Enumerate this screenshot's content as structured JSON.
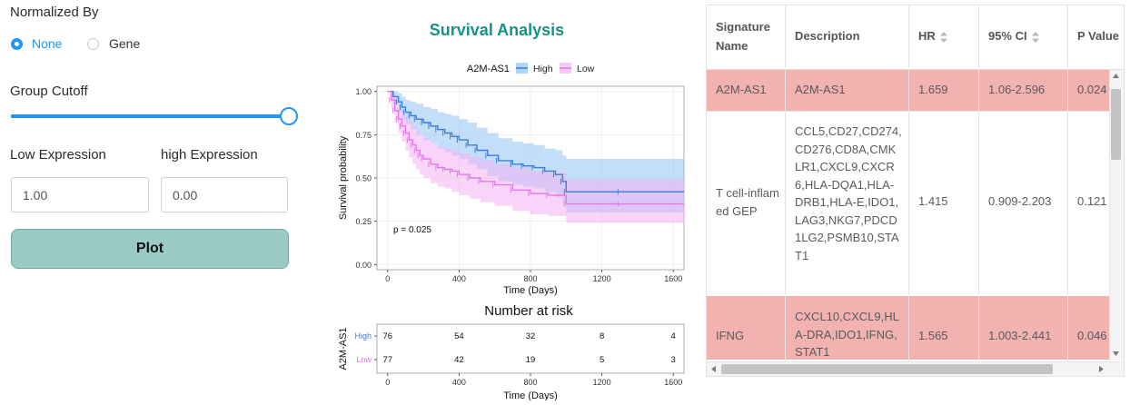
{
  "controls": {
    "normalized_by_label": "Normalized By",
    "radio_none": "None",
    "radio_gene": "Gene",
    "group_cutoff_label": "Group Cutoff",
    "slider_value": 1.0,
    "low_expression_label": "Low Expression",
    "high_expression_label": "high Expression",
    "low_value": "1.00",
    "high_value": "0.00",
    "plot_button": "Plot"
  },
  "chart_data": [
    {
      "type": "line",
      "title": "Survival Analysis",
      "legend_title": "A2M-AS1",
      "legend_position": "top",
      "xlabel": "Time (Days)",
      "ylabel": "Survival probability",
      "xlim": [
        -60,
        1660
      ],
      "ylim": [
        -0.03,
        1.03
      ],
      "xticks": [
        "0",
        "400",
        "800",
        "1200",
        "1600"
      ],
      "yticks": [
        "0.00",
        "0.25",
        "0.50",
        "0.75",
        "1.00"
      ],
      "annotation": "p = 0.025",
      "grid": true,
      "series": [
        {
          "name": "High",
          "color": "#3b7dd8",
          "band_color": "#8fc2f2",
          "x": [
            0,
            30,
            60,
            80,
            100,
            130,
            160,
            200,
            240,
            280,
            320,
            360,
            400,
            450,
            500,
            560,
            620,
            700,
            760,
            820,
            880,
            940,
            980,
            1000,
            1300,
            1660
          ],
          "y": [
            1.0,
            0.97,
            0.94,
            0.91,
            0.88,
            0.86,
            0.84,
            0.82,
            0.8,
            0.78,
            0.76,
            0.74,
            0.72,
            0.69,
            0.66,
            0.63,
            0.6,
            0.58,
            0.57,
            0.56,
            0.54,
            0.52,
            0.48,
            0.42,
            0.42,
            0.42
          ],
          "lower": [
            1.0,
            0.93,
            0.88,
            0.84,
            0.81,
            0.78,
            0.75,
            0.72,
            0.7,
            0.67,
            0.65,
            0.63,
            0.61,
            0.58,
            0.55,
            0.51,
            0.48,
            0.46,
            0.45,
            0.44,
            0.42,
            0.39,
            0.35,
            0.3,
            0.3,
            0.3
          ],
          "upper": [
            1.0,
            1.0,
            0.99,
            0.97,
            0.95,
            0.94,
            0.93,
            0.91,
            0.9,
            0.88,
            0.87,
            0.86,
            0.84,
            0.82,
            0.79,
            0.76,
            0.73,
            0.71,
            0.7,
            0.69,
            0.67,
            0.66,
            0.63,
            0.61,
            0.61,
            0.61
          ]
        },
        {
          "name": "Low",
          "color": "#e377e8",
          "band_color": "#f2b3f3",
          "x": [
            0,
            20,
            40,
            60,
            80,
            100,
            120,
            140,
            160,
            180,
            200,
            240,
            280,
            320,
            360,
            400,
            460,
            520,
            600,
            700,
            800,
            900,
            1000,
            1300,
            1660
          ],
          "y": [
            1.0,
            0.95,
            0.89,
            0.84,
            0.8,
            0.76,
            0.72,
            0.69,
            0.66,
            0.63,
            0.61,
            0.58,
            0.56,
            0.55,
            0.54,
            0.52,
            0.5,
            0.48,
            0.46,
            0.43,
            0.41,
            0.4,
            0.35,
            0.35,
            0.35
          ],
          "lower": [
            1.0,
            0.9,
            0.82,
            0.76,
            0.71,
            0.66,
            0.62,
            0.58,
            0.55,
            0.52,
            0.5,
            0.47,
            0.45,
            0.44,
            0.42,
            0.4,
            0.38,
            0.36,
            0.34,
            0.31,
            0.29,
            0.28,
            0.24,
            0.24,
            0.24
          ],
          "upper": [
            1.0,
            1.0,
            0.96,
            0.92,
            0.88,
            0.86,
            0.83,
            0.8,
            0.77,
            0.75,
            0.73,
            0.7,
            0.68,
            0.67,
            0.66,
            0.64,
            0.62,
            0.6,
            0.58,
            0.56,
            0.54,
            0.53,
            0.49,
            0.49,
            0.49
          ]
        }
      ]
    },
    {
      "type": "table",
      "title": "Number at risk",
      "ylabel": "A2M-AS1",
      "xlabel": "Time (Days)",
      "x": [
        0,
        400,
        800,
        1200,
        1600
      ],
      "xticks": [
        "0",
        "400",
        "800",
        "1200",
        "1600"
      ],
      "rows": [
        {
          "name": "High",
          "color": "#3b7dd8",
          "values": [
            "76",
            "54",
            "32",
            "8",
            "4"
          ]
        },
        {
          "name": "Low",
          "color": "#e377e8",
          "values": [
            "77",
            "42",
            "19",
            "5",
            "3"
          ]
        }
      ]
    }
  ],
  "table": {
    "columns": [
      "Signature Name",
      "Description",
      "HR",
      "95% CI",
      "P Value"
    ],
    "rows": [
      {
        "name": "A2M-AS1",
        "description": "A2M-AS1",
        "hr": "1.659",
        "ci": "1.06-2.596",
        "p": "0.024",
        "highlight": true
      },
      {
        "name": "T cell-inflamed GEP",
        "description": "CCL5,CD27,CD274,CD276,CD8A,CMKLR1,CXCL9,CXCR6,HLA-DQA1,HLA-DRB1,HLA-E,IDO1,LAG3,NKG7,PDCD1LG2,PSMB10,STAT1",
        "hr": "1.415",
        "ci": "0.909-2.203",
        "p": "0.121",
        "highlight": false
      },
      {
        "name": "IFNG",
        "description": "CXCL10,CXCL9,HLA-DRA,IDO1,IFNG,STAT1",
        "hr": "1.565",
        "ci": "1.003-2.441",
        "p": "0.046",
        "highlight": true
      }
    ],
    "highlight_color": "#f1b2b0"
  }
}
